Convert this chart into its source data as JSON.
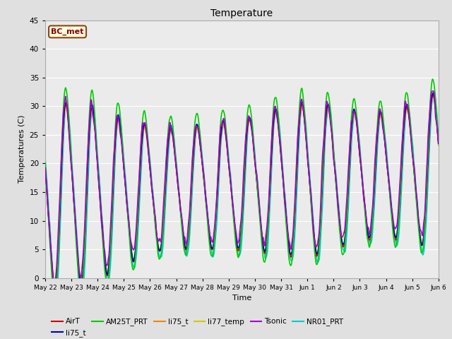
{
  "title": "Temperature",
  "xlabel": "Time",
  "ylabel": "Temperatures (C)",
  "ylim": [
    0,
    45
  ],
  "yticks": [
    0,
    5,
    10,
    15,
    20,
    25,
    30,
    35,
    40,
    45
  ],
  "bg_color": "#e0e0e0",
  "plot_bg_color": "#ebebeb",
  "grid_color": "#ffffff",
  "annotation_text": "BC_met",
  "series": [
    {
      "label": "AirT",
      "color": "#cc0000",
      "lw": 1.2,
      "zorder": 4
    },
    {
      "label": "li75_t",
      "color": "#0000bb",
      "lw": 1.2,
      "zorder": 5
    },
    {
      "label": "AM25T_PRT",
      "color": "#00cc00",
      "lw": 1.2,
      "zorder": 6
    },
    {
      "label": "li75_t",
      "color": "#ee8800",
      "lw": 1.2,
      "zorder": 3
    },
    {
      "label": "li77_temp",
      "color": "#cccc00",
      "lw": 1.2,
      "zorder": 2
    },
    {
      "label": "Tsonic",
      "color": "#aa00cc",
      "lw": 1.2,
      "zorder": 7
    },
    {
      "label": "NR01_PRT",
      "color": "#00cccc",
      "lw": 1.2,
      "zorder": 1
    }
  ],
  "n_points": 1440,
  "seed": 42,
  "legend_ncol": 6
}
